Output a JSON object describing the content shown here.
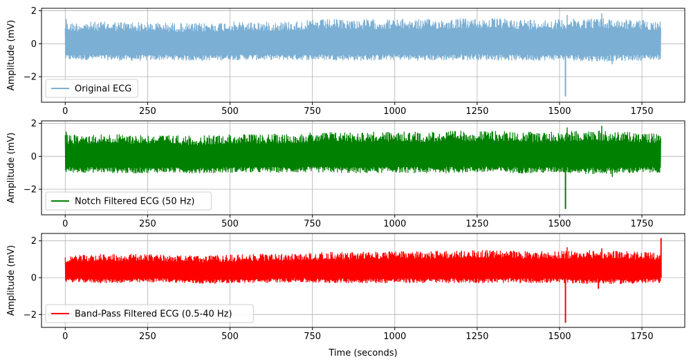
{
  "figure": {
    "xlabel": "Time (seconds)"
  },
  "chart_data": [
    {
      "type": "line",
      "ylabel": "Amplitude (mV)",
      "xlim": [
        -72,
        1880
      ],
      "ylim": [
        -3.55,
        2.15
      ],
      "xticks": [
        0,
        250,
        500,
        750,
        1000,
        1250,
        1500,
        1750
      ],
      "yticks": [
        -2,
        0,
        2
      ],
      "grid": true,
      "legend_position": "lower-left",
      "series": [
        {
          "name": "Original ECG",
          "color": "#7bafd4",
          "x_range": [
            0,
            1808
          ],
          "envelope_x": [
            0,
            100,
            200,
            300,
            400,
            500,
            600,
            700,
            750,
            800,
            900,
            1000,
            1100,
            1200,
            1300,
            1400,
            1500,
            1600,
            1700,
            1808
          ],
          "envelope_upper": [
            1.3,
            1.35,
            1.35,
            1.3,
            1.25,
            1.35,
            1.35,
            1.4,
            1.45,
            1.5,
            1.5,
            1.5,
            1.5,
            1.55,
            1.55,
            1.5,
            1.5,
            1.6,
            1.5,
            1.4
          ],
          "envelope_lower": [
            -1.0,
            -1.0,
            -1.05,
            -1.0,
            -1.05,
            -1.0,
            -1.0,
            -1.0,
            -1.0,
            -1.0,
            -1.05,
            -1.0,
            -1.05,
            -1.0,
            -1.0,
            -1.05,
            -1.0,
            -1.1,
            -1.05,
            -1.0
          ],
          "peaks": [
            {
              "x": 3,
              "y": 1.5
            },
            {
              "x": 1523,
              "y": 1.75
            },
            {
              "x": 1628,
              "y": 1.85
            },
            {
              "x": 1660,
              "y": -1.25
            }
          ],
          "spikes": [
            {
              "x": 1518,
              "y": -3.2
            }
          ]
        }
      ]
    },
    {
      "type": "line",
      "ylabel": "Amplitude (mV)",
      "xlim": [
        -72,
        1880
      ],
      "ylim": [
        -3.55,
        2.15
      ],
      "xticks": [
        0,
        250,
        500,
        750,
        1000,
        1250,
        1500,
        1750
      ],
      "yticks": [
        -2,
        0,
        2
      ],
      "grid": true,
      "legend_position": "lower-left",
      "series": [
        {
          "name": "Notch Filtered ECG (50 Hz)",
          "color": "#008000",
          "x_range": [
            0,
            1808
          ],
          "envelope_x": [
            0,
            100,
            200,
            300,
            400,
            500,
            600,
            700,
            750,
            800,
            900,
            1000,
            1100,
            1200,
            1300,
            1400,
            1500,
            1600,
            1700,
            1808
          ],
          "envelope_upper": [
            1.3,
            1.35,
            1.35,
            1.3,
            1.25,
            1.35,
            1.35,
            1.4,
            1.45,
            1.5,
            1.5,
            1.5,
            1.5,
            1.55,
            1.55,
            1.5,
            1.5,
            1.6,
            1.5,
            1.4
          ],
          "envelope_lower": [
            -1.0,
            -1.0,
            -1.05,
            -1.0,
            -1.05,
            -1.0,
            -1.0,
            -1.0,
            -1.0,
            -1.0,
            -1.05,
            -1.0,
            -1.05,
            -1.0,
            -1.0,
            -1.05,
            -1.0,
            -1.1,
            -1.05,
            -1.0
          ],
          "peaks": [
            {
              "x": 3,
              "y": 1.5
            },
            {
              "x": 1523,
              "y": 1.75
            },
            {
              "x": 1628,
              "y": 1.85
            },
            {
              "x": 1660,
              "y": -1.25
            }
          ],
          "spikes": [
            {
              "x": 1518,
              "y": -3.2
            }
          ]
        }
      ]
    },
    {
      "type": "line",
      "ylabel": "Amplitude (mV)",
      "xlim": [
        -72,
        1880
      ],
      "ylim": [
        -2.7,
        2.4
      ],
      "xticks": [
        0,
        250,
        500,
        750,
        1000,
        1250,
        1500,
        1750
      ],
      "yticks": [
        -2,
        0,
        2
      ],
      "grid": true,
      "legend_position": "lower-left",
      "series": [
        {
          "name": "Band-Pass Filtered ECG (0.5-40 Hz)",
          "color": "#ff0000",
          "x_range": [
            0,
            1808
          ],
          "envelope_x": [
            0,
            100,
            200,
            300,
            400,
            500,
            600,
            700,
            750,
            800,
            900,
            1000,
            1100,
            1200,
            1300,
            1400,
            1500,
            1600,
            1700,
            1808
          ],
          "envelope_upper": [
            1.2,
            1.3,
            1.3,
            1.25,
            1.2,
            1.25,
            1.3,
            1.3,
            1.35,
            1.4,
            1.4,
            1.45,
            1.45,
            1.5,
            1.5,
            1.45,
            1.45,
            1.5,
            1.45,
            1.35
          ],
          "envelope_lower": [
            -0.25,
            -0.3,
            -0.3,
            -0.25,
            -0.35,
            -0.3,
            -0.3,
            -0.25,
            -0.3,
            -0.3,
            -0.3,
            -0.3,
            -0.3,
            -0.3,
            -0.3,
            -0.3,
            -0.3,
            -0.35,
            -0.35,
            -0.3
          ],
          "peaks": [
            {
              "x": 1523,
              "y": 1.65
            },
            {
              "x": 1628,
              "y": 1.6
            }
          ],
          "spikes": [
            {
              "x": 1518,
              "y": -2.45
            },
            {
              "x": 1618,
              "y": -0.6
            },
            {
              "x": 1808,
              "y": 2.15
            }
          ]
        }
      ]
    }
  ]
}
